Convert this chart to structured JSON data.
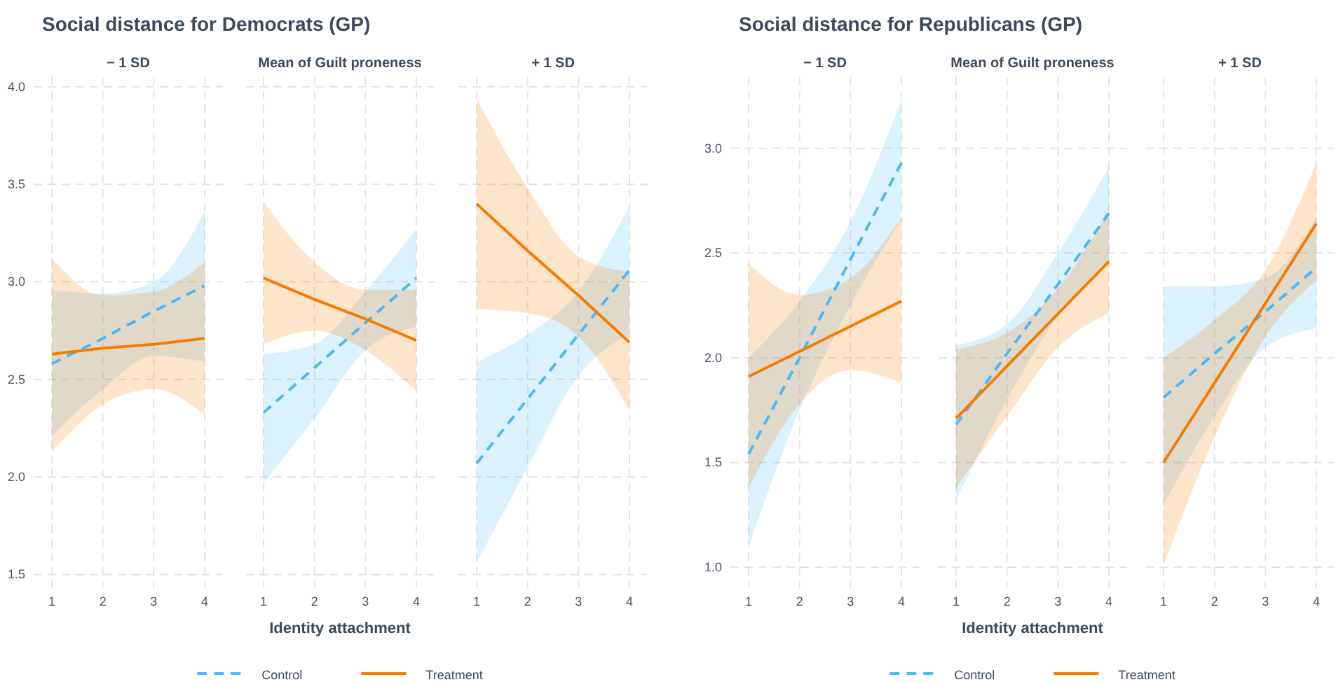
{
  "chart_data": [
    {
      "type": "line",
      "title": "Social distance for Democrats (GP)",
      "subtitle": "− 1 SD",
      "x": [
        1,
        2,
        3,
        4
      ],
      "xlim": [
        1,
        4
      ],
      "xticks": [
        1,
        2,
        3,
        4
      ],
      "ylim": [
        1.43,
        4.05
      ],
      "yticks": [
        1.5,
        {
          "value": 2,
          "label": "2.0"
        },
        2.5,
        {
          "value": 3,
          "label": "3.0"
        },
        3.5,
        {
          "value": 4,
          "label": "4.0"
        }
      ],
      "grid": true,
      "series": [
        {
          "color": "#4db8f5",
          "line_style": "dashed",
          "values": [
            2.58,
            2.71,
            2.85,
            2.98
          ],
          "lower": [
            2.21,
            2.45,
            2.62,
            2.59
          ],
          "upper": [
            2.96,
            2.94,
            3.0,
            3.36
          ]
        },
        {
          "color": "#f57c00",
          "line_style": "solid",
          "values": [
            2.63,
            2.66,
            2.68,
            2.71
          ],
          "lower": [
            2.13,
            2.37,
            2.45,
            2.32
          ],
          "upper": [
            3.12,
            2.93,
            2.95,
            3.1
          ]
        }
      ]
    },
    {
      "type": "line",
      "subtitle": "Mean of Guilt proneness",
      "xlabel": "Identity attachment",
      "legend": "bottom",
      "tick_labels": "x",
      "x": [
        1,
        2,
        3,
        4
      ],
      "xlim": [
        1,
        4
      ],
      "xticks": [
        1,
        2,
        3,
        4
      ],
      "ylim": [
        1.43,
        4.05
      ],
      "yticks": [
        1.5,
        2,
        2.5,
        3,
        3.5,
        4
      ],
      "grid": true,
      "series": [
        {
          "name": "Control",
          "color": "#4db8f5",
          "line_style": "dashed",
          "values": [
            2.33,
            2.56,
            2.79,
            3.02
          ],
          "lower": [
            1.97,
            2.3,
            2.65,
            2.77
          ],
          "upper": [
            2.63,
            2.68,
            2.95,
            3.27
          ]
        },
        {
          "name": "Treatment",
          "color": "#f57c00",
          "line_style": "solid",
          "values": [
            3.02,
            2.91,
            2.81,
            2.7
          ],
          "lower": [
            2.68,
            2.75,
            2.65,
            2.44
          ],
          "upper": [
            3.41,
            3.1,
            2.96,
            2.96
          ]
        }
      ]
    },
    {
      "type": "line",
      "subtitle": "+ 1 SD",
      "tick_labels": "x",
      "x": [
        1,
        2,
        3,
        4
      ],
      "xlim": [
        1,
        4
      ],
      "xticks": [
        1,
        2,
        3,
        4
      ],
      "ylim": [
        1.43,
        4.05
      ],
      "yticks": [
        1.5,
        2,
        2.5,
        3,
        3.5,
        4
      ],
      "grid": true,
      "series": [
        {
          "color": "#4db8f5",
          "line_style": "dashed",
          "values": [
            2.07,
            2.4,
            2.73,
            3.06
          ],
          "lower": [
            1.56,
            2.05,
            2.52,
            2.73
          ],
          "upper": [
            2.59,
            2.73,
            2.95,
            3.39
          ]
        },
        {
          "color": "#f57c00",
          "line_style": "solid",
          "values": [
            3.4,
            3.16,
            2.93,
            2.69
          ],
          "lower": [
            2.86,
            2.84,
            2.72,
            2.34
          ],
          "upper": [
            3.94,
            3.48,
            3.13,
            3.05
          ]
        }
      ]
    },
    {
      "type": "line",
      "title": "Social distance for Republicans (GP)",
      "subtitle": "− 1 SD",
      "x": [
        1,
        2,
        3,
        4
      ],
      "xlim": [
        1,
        4
      ],
      "xticks": [
        1,
        2,
        3,
        4
      ],
      "ylim": [
        0.9,
        3.34
      ],
      "yticks": [
        {
          "value": 1,
          "label": "1.0"
        },
        1.5,
        {
          "value": 2,
          "label": "2.0"
        },
        2.5,
        {
          "value": 3,
          "label": "3.0"
        }
      ],
      "grid": true,
      "series": [
        {
          "color": "#4db8f5",
          "line_style": "dashed",
          "values": [
            1.54,
            2.0,
            2.47,
            2.93
          ],
          "lower": [
            1.1,
            1.75,
            2.25,
            2.66
          ],
          "upper": [
            2.0,
            2.27,
            2.65,
            3.23
          ]
        },
        {
          "color": "#f57c00",
          "line_style": "solid",
          "values": [
            1.91,
            2.03,
            2.15,
            2.27
          ],
          "lower": [
            1.38,
            1.78,
            1.94,
            1.88
          ],
          "upper": [
            2.45,
            2.3,
            2.38,
            2.67
          ]
        }
      ]
    },
    {
      "type": "line",
      "subtitle": "Mean of Guilt proneness",
      "xlabel": "Identity attachment",
      "legend": "bottom",
      "tick_labels": "x",
      "x": [
        1,
        2,
        3,
        4
      ],
      "xlim": [
        1,
        4
      ],
      "xticks": [
        1,
        2,
        3,
        4
      ],
      "ylim": [
        0.9,
        3.34
      ],
      "yticks": [
        1,
        1.5,
        2,
        2.5,
        3
      ],
      "grid": true,
      "series": [
        {
          "name": "Control",
          "color": "#4db8f5",
          "line_style": "dashed",
          "values": [
            1.68,
            2.02,
            2.35,
            2.69
          ],
          "lower": [
            1.32,
            1.8,
            2.2,
            2.47
          ],
          "upper": [
            2.06,
            2.16,
            2.5,
            2.91
          ]
        },
        {
          "name": "Treatment",
          "color": "#f57c00",
          "line_style": "solid",
          "values": [
            1.71,
            1.96,
            2.21,
            2.46
          ],
          "lower": [
            1.38,
            1.72,
            2.05,
            2.21
          ],
          "upper": [
            2.04,
            2.12,
            2.33,
            2.7
          ]
        }
      ]
    },
    {
      "type": "line",
      "subtitle": "+ 1 SD",
      "tick_labels": "x",
      "x": [
        1,
        2,
        3,
        4
      ],
      "xlim": [
        1,
        4
      ],
      "xticks": [
        1,
        2,
        3,
        4
      ],
      "ylim": [
        0.9,
        3.34
      ],
      "yticks": [
        1,
        1.5,
        2,
        2.5,
        3
      ],
      "grid": true,
      "series": [
        {
          "color": "#4db8f5",
          "line_style": "dashed",
          "values": [
            1.81,
            2.02,
            2.22,
            2.43
          ],
          "lower": [
            1.3,
            1.72,
            2.05,
            2.14
          ],
          "upper": [
            2.34,
            2.34,
            2.38,
            2.67
          ]
        },
        {
          "color": "#f57c00",
          "line_style": "solid",
          "values": [
            1.5,
            1.88,
            2.26,
            2.64
          ],
          "lower": [
            1.01,
            1.62,
            2.1,
            2.37
          ],
          "upper": [
            2.0,
            2.18,
            2.42,
            2.93
          ]
        }
      ]
    }
  ]
}
